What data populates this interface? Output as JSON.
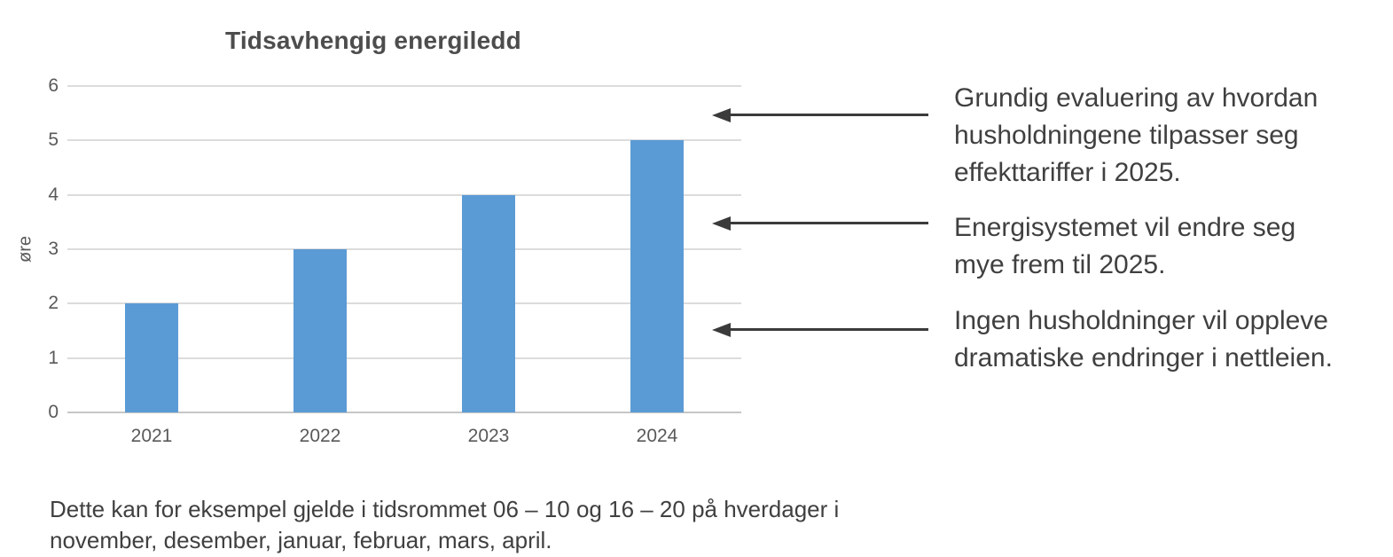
{
  "colors": {
    "bar": "#5B9BD5",
    "gridline": "#DCDCDC",
    "axis_line": "#C6C6C6",
    "axis_text": "#595959",
    "title_text": "#4D4D4D",
    "body_text": "#404040",
    "arrow": "#3B3B3B",
    "background": "#FFFFFF"
  },
  "chart_data": {
    "type": "bar",
    "title": "Tidsavhengig energiledd",
    "categories": [
      "2021",
      "2022",
      "2023",
      "2024"
    ],
    "values": [
      2,
      3,
      4,
      5
    ],
    "xlabel": "",
    "ylabel": "øre",
    "ylim": [
      0,
      6
    ],
    "y_ticks": [
      0,
      1,
      2,
      3,
      4,
      5,
      6
    ],
    "grid": "horizontal",
    "legend": "none",
    "bar_color": "#5B9BD5"
  },
  "annotations": [
    {
      "text": "Grundig evaluering av hvordan\nhusholdningene tilpasser seg\neffekttariffer i 2025."
    },
    {
      "text": "Energisystemet vil endre seg\nmye frem til 2025."
    },
    {
      "text": "Ingen husholdninger vil oppleve\ndramatiske endringer i nettleien."
    }
  ],
  "footnote": {
    "text": "Dette kan for eksempel gjelde i tidsrommet 06 – 10 og 16 – 20 på hverdager i\nnovember, desember, januar, februar, mars, april."
  }
}
